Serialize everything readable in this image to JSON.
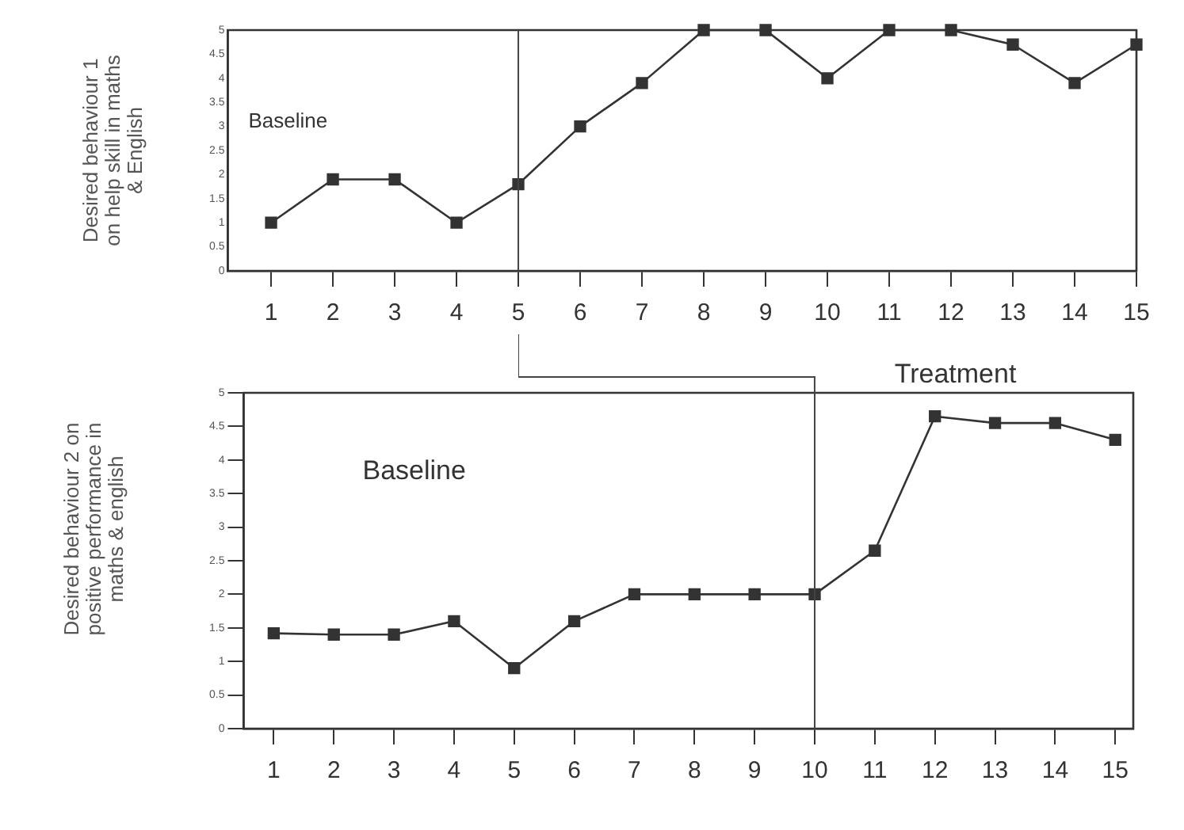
{
  "chart_data": [
    {
      "type": "line",
      "ylabel": "Desired behaviour 1 on help skill in maths & English",
      "annotations": [
        "Baseline"
      ],
      "x": [
        1,
        2,
        3,
        4,
        5,
        6,
        7,
        8,
        9,
        10,
        11,
        12,
        13,
        14,
        15
      ],
      "series": [
        {
          "color": "#333333",
          "values": [
            1,
            1.9,
            1.9,
            1,
            1.8,
            3,
            3.9,
            5,
            5,
            4,
            5,
            5,
            4.7,
            3.9,
            4.7
          ]
        }
      ],
      "xlim": [
        0.3,
        15
      ],
      "xticks": [
        1,
        2,
        3,
        4,
        5,
        6,
        7,
        8,
        9,
        10,
        11,
        12,
        13,
        14,
        15
      ],
      "ylim": [
        0,
        5
      ],
      "yticks": [
        0,
        0.5,
        1,
        1.5,
        2,
        2.5,
        3,
        3.5,
        4,
        4.5,
        5
      ],
      "ref_lines": [
        {
          "axis": "x",
          "value": 5,
          "color": "#444444"
        }
      ],
      "grid": false,
      "legend": false,
      "marker": "square",
      "line_style": "solid"
    },
    {
      "type": "line",
      "ylabel": "Desired behaviour 2 on positive performance in maths & english",
      "annotations": [
        "Baseline",
        "Treatment"
      ],
      "x": [
        1,
        2,
        3,
        4,
        5,
        6,
        7,
        8,
        9,
        10,
        11,
        12,
        13,
        14,
        15
      ],
      "series": [
        {
          "color": "#333333",
          "values": [
            1.42,
            1.4,
            1.4,
            1.6,
            0.9,
            1.6,
            2,
            2,
            2,
            2,
            2.65,
            4.65,
            4.55,
            4.55,
            4.3
          ]
        }
      ],
      "xlim": [
        0.5,
        15.3
      ],
      "xticks": [
        1,
        2,
        3,
        4,
        5,
        6,
        7,
        8,
        9,
        10,
        11,
        12,
        13,
        14,
        15
      ],
      "ylim": [
        0,
        5
      ],
      "yticks": [
        0,
        0.5,
        1,
        1.5,
        2,
        2.5,
        3,
        3.5,
        4,
        4.5,
        5
      ],
      "ref_lines": [
        {
          "axis": "x",
          "value": 10,
          "color": "#444444"
        }
      ],
      "grid": false,
      "legend": false,
      "marker": "square",
      "line_style": "solid"
    }
  ]
}
